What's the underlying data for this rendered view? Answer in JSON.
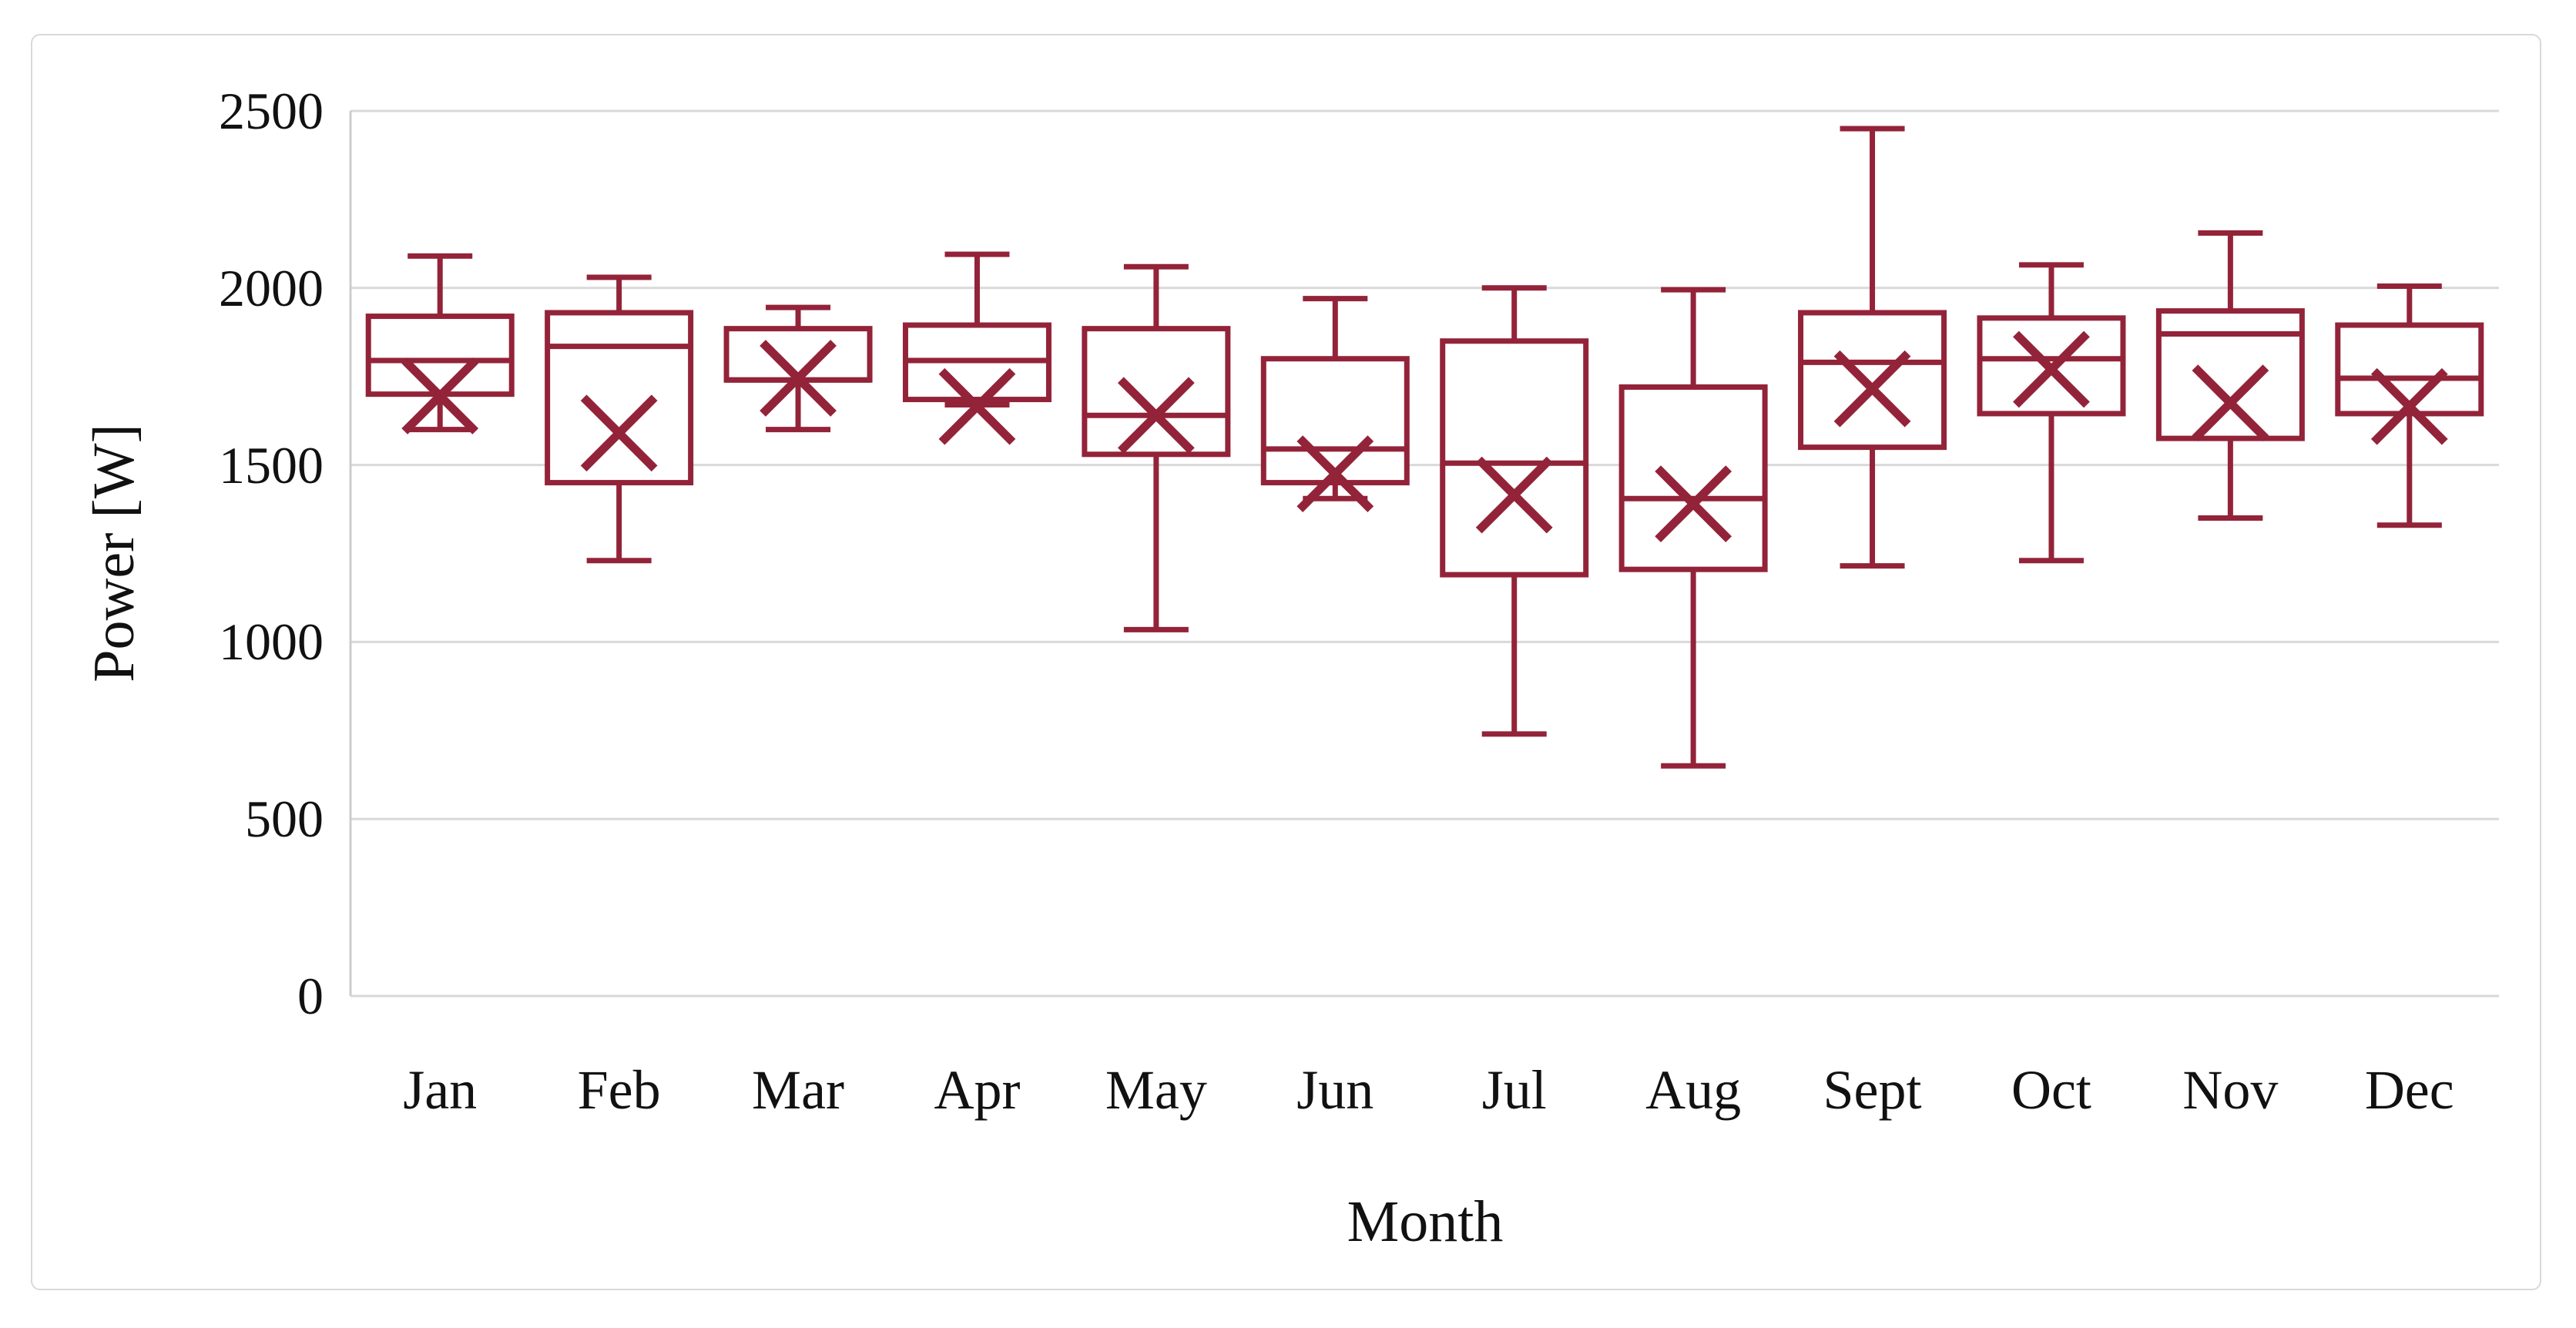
{
  "figure": {
    "background": "#ffffff",
    "frame_border_color": "#d9d9d9"
  },
  "chart_data": {
    "type": "box",
    "title": "",
    "xlabel": "Month",
    "ylabel": "Power [W]",
    "ylim": [
      0,
      2500
    ],
    "yticks": [
      "0",
      "500",
      "1000",
      "1500",
      "2000",
      "2500"
    ],
    "grid": "horizontal",
    "gridline_color": "#d9d9d9",
    "axis_line_color": "#cccccc",
    "box_color": "#932339",
    "box_fill": "#ffffff",
    "mean_marker": "x",
    "legend": "none",
    "categories": [
      "Jan",
      "Feb",
      "Mar",
      "Apr",
      "May",
      "Jun",
      "Jul",
      "Aug",
      "Sept",
      "Oct",
      "Nov",
      "Dec"
    ],
    "series": [
      {
        "category": "Jan",
        "min": 1600,
        "q1": 1700,
        "median": 1795,
        "q3": 1920,
        "max": 2090,
        "mean": 1695
      },
      {
        "category": "Feb",
        "min": 1230,
        "q1": 1450,
        "median": 1835,
        "q3": 1930,
        "max": 2030,
        "mean": 1590
      },
      {
        "category": "Mar",
        "min": 1600,
        "q1": 1740,
        "median": 1740,
        "q3": 1885,
        "max": 1945,
        "mean": 1745
      },
      {
        "category": "Apr",
        "min": 1670,
        "q1": 1685,
        "median": 1795,
        "q3": 1895,
        "max": 2095,
        "mean": 1665
      },
      {
        "category": "May",
        "min": 1035,
        "q1": 1530,
        "median": 1640,
        "q3": 1885,
        "max": 2060,
        "mean": 1640
      },
      {
        "category": "Jun",
        "min": 1405,
        "q1": 1450,
        "median": 1545,
        "q3": 1800,
        "max": 1970,
        "mean": 1475
      },
      {
        "category": "Jul",
        "min": 740,
        "q1": 1190,
        "median": 1505,
        "q3": 1850,
        "max": 2000,
        "mean": 1415
      },
      {
        "category": "Aug",
        "min": 650,
        "q1": 1205,
        "median": 1405,
        "q3": 1720,
        "max": 1995,
        "mean": 1390
      },
      {
        "category": "Sept",
        "min": 1215,
        "q1": 1550,
        "median": 1790,
        "q3": 1930,
        "max": 2450,
        "mean": 1715
      },
      {
        "category": "Oct",
        "min": 1230,
        "q1": 1645,
        "median": 1800,
        "q3": 1915,
        "max": 2065,
        "mean": 1770
      },
      {
        "category": "Nov",
        "min": 1350,
        "q1": 1575,
        "median": 1870,
        "q3": 1935,
        "max": 2155,
        "mean": 1675
      },
      {
        "category": "Dec",
        "min": 1330,
        "q1": 1645,
        "median": 1745,
        "q3": 1895,
        "max": 2005,
        "mean": 1665
      }
    ]
  }
}
